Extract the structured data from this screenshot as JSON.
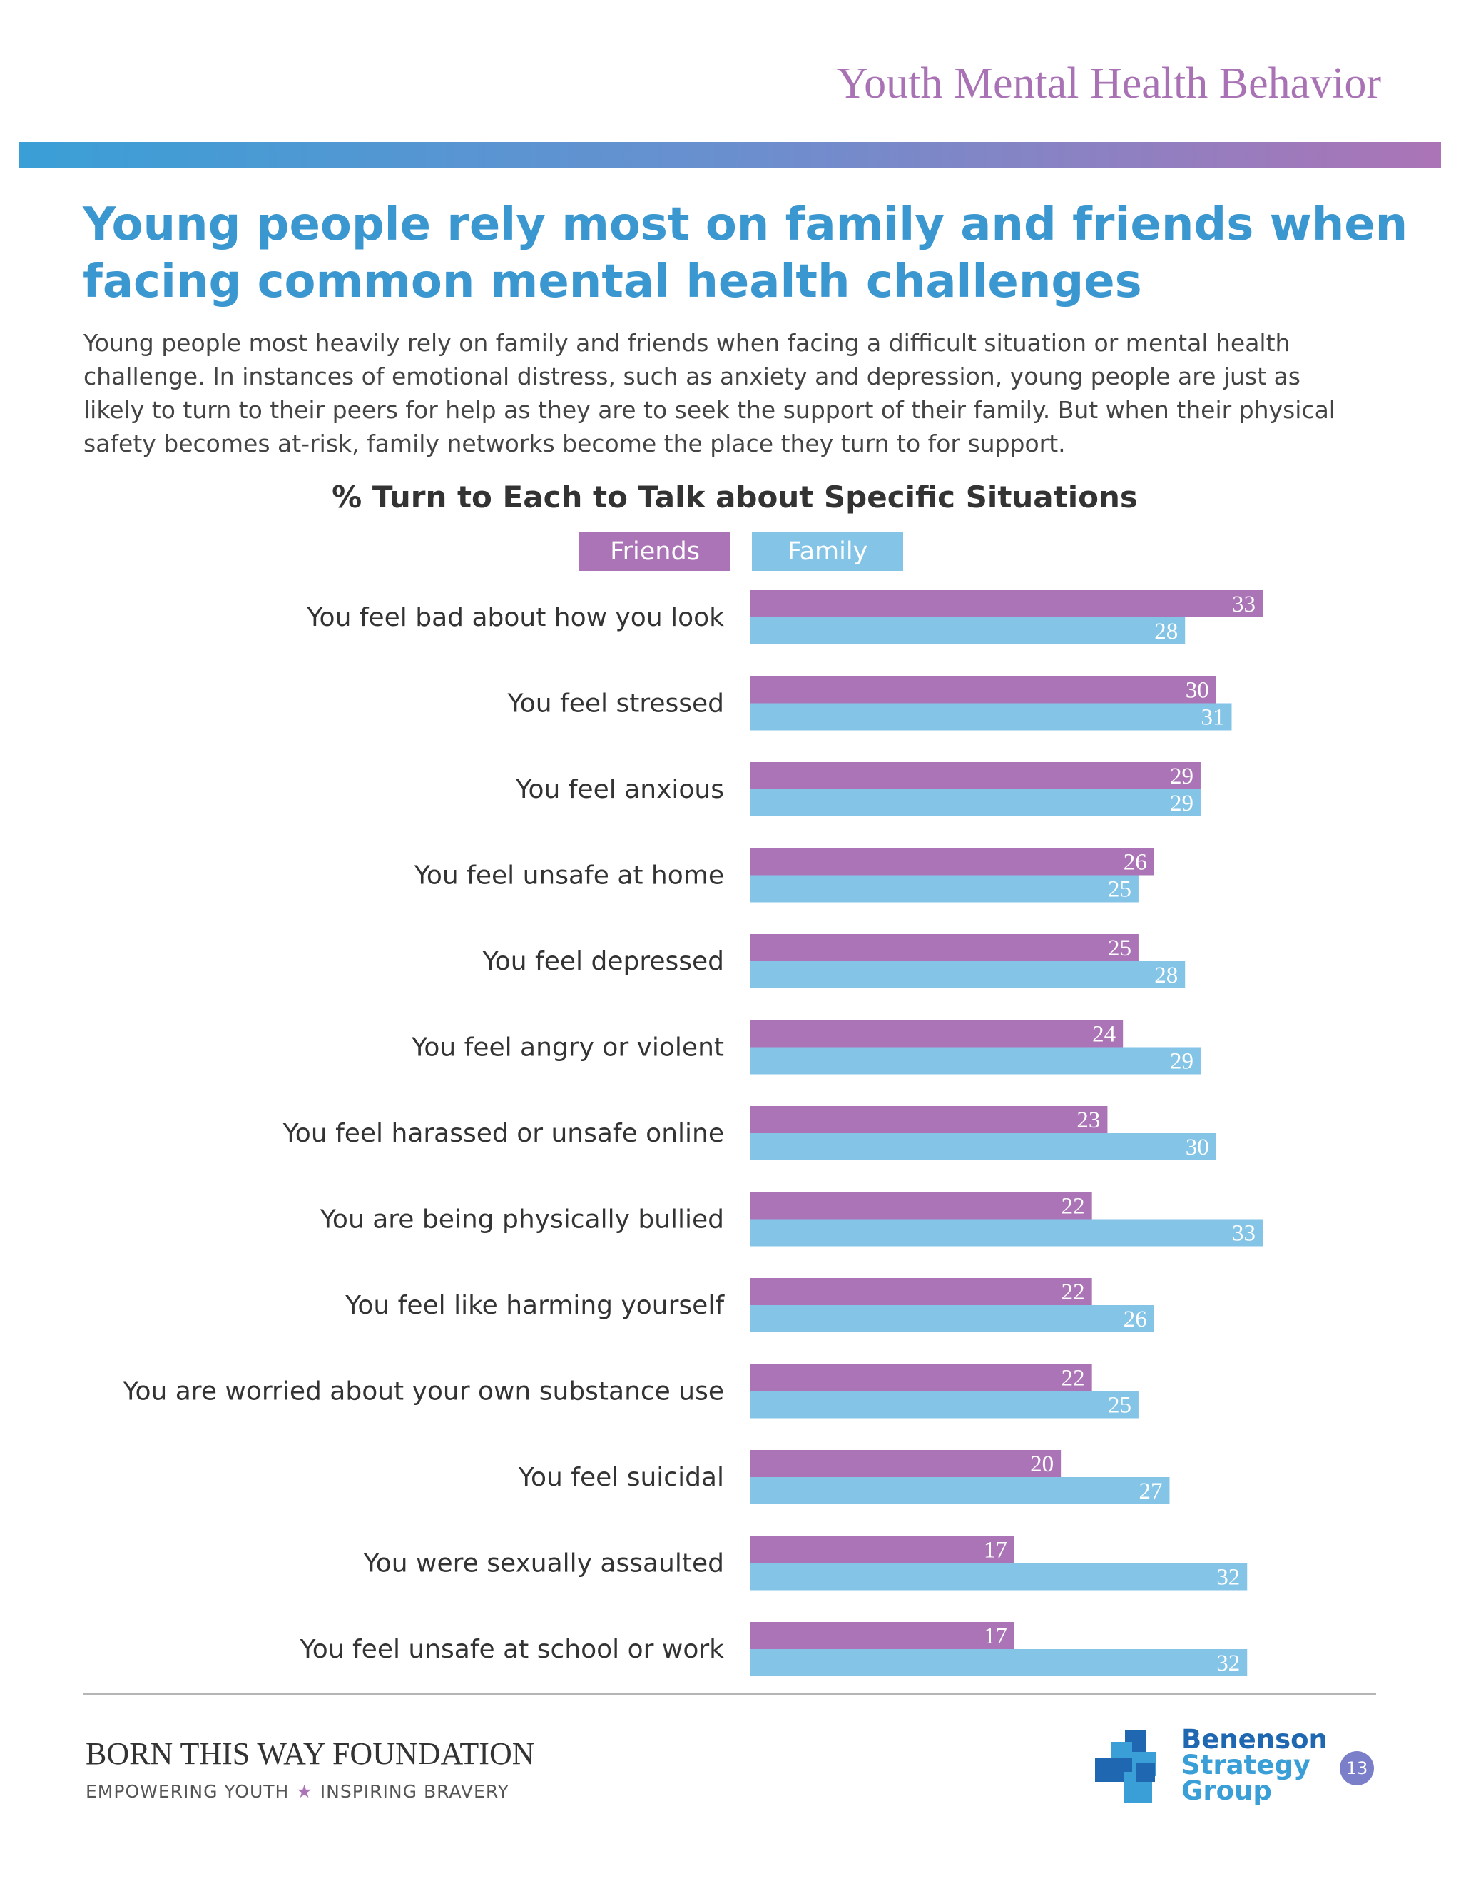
{
  "header": {
    "section_title": "Youth Mental Health Behavior"
  },
  "page": {
    "title": "Young people rely most on family and friends when facing common mental health challenges",
    "intro": "Young people most heavily rely on family and friends when facing a difficult situation or mental health challenge. In instances of emotional distress, such as anxiety and depression, young people are just as likely to turn to their peers for help as they are to seek the support of their family. But when their physical safety becomes at-risk, family networks become the place they turn to for support."
  },
  "colors": {
    "friends": "#ab74b6",
    "family": "#84c4e7",
    "accent_blue": "#3a97d0"
  },
  "chart_data": {
    "type": "bar",
    "orientation": "horizontal",
    "title": "% Turn to Each to Talk about Specific Situations",
    "legend": {
      "placement": "top"
    },
    "grid": false,
    "xlim": [
      0,
      33
    ],
    "categories": [
      "You feel bad about how you look",
      "You feel stressed",
      "You feel anxious",
      "You feel unsafe at home",
      "You feel depressed",
      "You feel angry or violent",
      "You feel harassed or unsafe online",
      "You are being physically bullied",
      "You feel like harming yourself",
      "You are worried about your own substance use",
      "You feel suicidal",
      "You were sexually assaulted",
      "You feel unsafe at school or work"
    ],
    "series": [
      {
        "name": "Friends",
        "color": "#ab74b6",
        "values": [
          33,
          30,
          29,
          26,
          25,
          24,
          23,
          22,
          22,
          22,
          20,
          17,
          17
        ]
      },
      {
        "name": "Family",
        "color": "#84c4e7",
        "values": [
          28,
          31,
          29,
          25,
          28,
          29,
          30,
          33,
          26,
          25,
          27,
          32,
          32
        ]
      }
    ]
  },
  "footer": {
    "foundation_name": "BORN THIS WAY FOUNDATION",
    "tagline_left": "EMPOWERING YOUTH",
    "tagline_right": "INSPIRING BRAVERY",
    "partner_line1": "Benenson",
    "partner_line2": "Strategy",
    "partner_line3": "Group",
    "page_number": "13"
  }
}
